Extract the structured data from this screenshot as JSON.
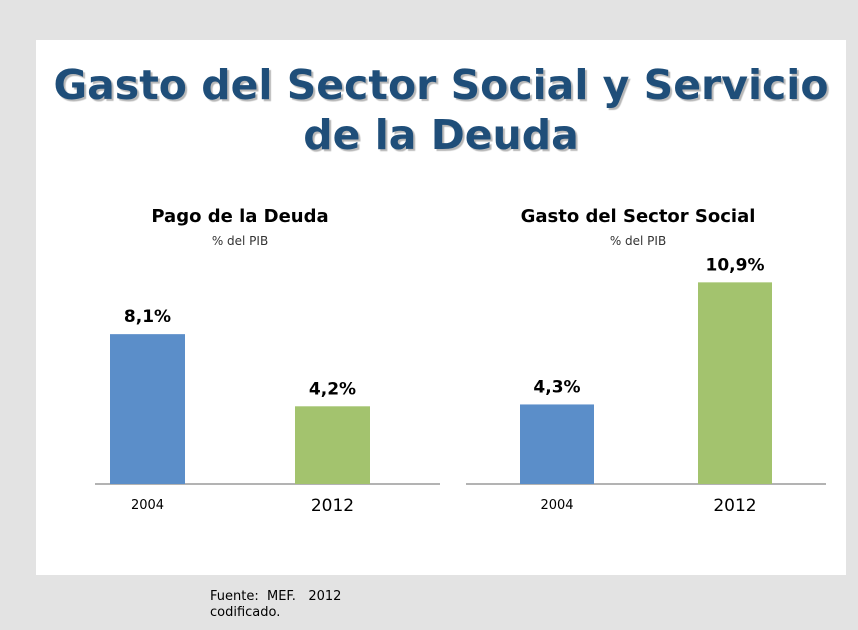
{
  "title": {
    "line1": "Gasto del Sector Social y Servicio",
    "line2": "de la Deuda"
  },
  "footer": {
    "line1": "Fuente:  MEF.   2012",
    "line2": "codificado."
  },
  "colors": {
    "title": "#1f4e79",
    "bar_2004": "#5b8ec9",
    "bar_2012": "#a3c36e",
    "axis": "#9a9a9a",
    "background": "#e3e3e3"
  },
  "chart_data": [
    {
      "type": "bar",
      "title": "Pago de la Deuda",
      "subtitle": "% del PIB",
      "categories": [
        "2004",
        "2012"
      ],
      "values": [
        8.1,
        4.2
      ],
      "data_labels": [
        "8,1%",
        "4,2%"
      ],
      "ylim": [
        0,
        12
      ],
      "grid": false,
      "legend": "none"
    },
    {
      "type": "bar",
      "title": "Gasto del Sector Social",
      "subtitle": "% del PIB",
      "categories": [
        "2004",
        "2012"
      ],
      "values": [
        4.3,
        10.9
      ],
      "data_labels": [
        "4,3%",
        "10,9%"
      ],
      "ylim": [
        0,
        12
      ],
      "grid": false,
      "legend": "none"
    }
  ]
}
